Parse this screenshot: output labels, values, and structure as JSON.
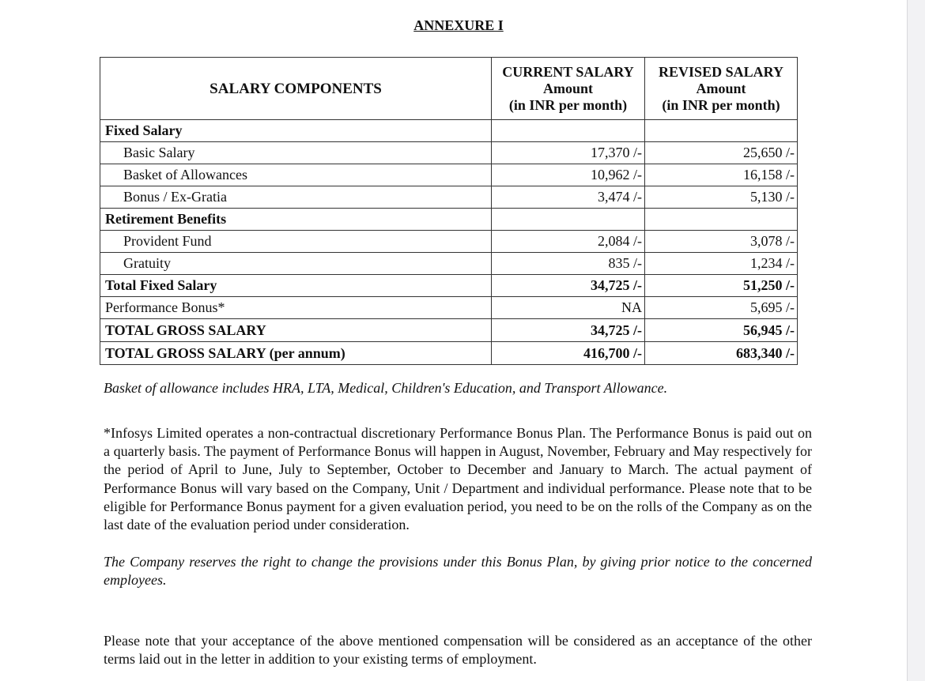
{
  "title": "ANNEXURE I",
  "table": {
    "headers": {
      "components": "SALARY COMPONENTS",
      "current": [
        "CURRENT SALARY",
        "Amount",
        "(in INR per month)"
      ],
      "revised": [
        "REVISED SALARY",
        "Amount",
        "(in INR per month)"
      ]
    },
    "rows": [
      {
        "label": "Fixed Salary",
        "current": "",
        "revised": "",
        "style": "section"
      },
      {
        "label": "Basic Salary",
        "current": "17,370 /-",
        "revised": "25,650 /-",
        "style": "item"
      },
      {
        "label": "Basket of Allowances",
        "current": "10,962 /-",
        "revised": "16,158 /-",
        "style": "item"
      },
      {
        "label": "Bonus / Ex-Gratia",
        "current": "3,474 /-",
        "revised": "5,130 /-",
        "style": "item"
      },
      {
        "label": "Retirement Benefits",
        "current": "",
        "revised": "",
        "style": "section"
      },
      {
        "label": "Provident Fund",
        "current": "2,084 /-",
        "revised": "3,078 /-",
        "style": "item"
      },
      {
        "label": "Gratuity",
        "current": "835 /-",
        "revised": "1,234 /-",
        "style": "item"
      },
      {
        "label": "Total Fixed Salary",
        "current": "34,725 /-",
        "revised": "51,250 /-",
        "style": "total"
      },
      {
        "label": "Performance Bonus*",
        "current": "NA",
        "revised": "5,695 /-",
        "style": "plain"
      },
      {
        "label": "TOTAL GROSS SALARY",
        "current": "34,725 /-",
        "revised": "56,945 /-",
        "style": "total"
      },
      {
        "label": "TOTAL GROSS SALARY (per annum)",
        "current": "416,700 /-",
        "revised": "683,340 /-",
        "style": "total"
      }
    ]
  },
  "allowance_note": "Basket of allowance includes HRA, LTA, Medical, Children's Education, and Transport Allowance.",
  "bonus_paragraph": "*Infosys Limited operates a non-contractual discretionary Performance Bonus Plan. The Performance Bonus is paid out on a quarterly basis. The payment of Performance Bonus will happen in August, November, February and May respectively for the period of April to June, July to September, October to December and January to March. The actual payment of Performance Bonus will vary based on the Company, Unit / Department and individual performance. Please note that to be eligible for Performance Bonus payment for a given evaluation period, you need to be on the rolls of the Company as on the last date of the evaluation period under consideration.",
  "reservation_paragraph": "The Company reserves the right to change the provisions under this Bonus Plan, by giving prior notice to the concerned employees.",
  "acceptance_paragraph": "Please note that your acceptance of the above mentioned compensation will be considered as an acceptance of the other terms laid out in the letter in addition to your existing terms of employment."
}
